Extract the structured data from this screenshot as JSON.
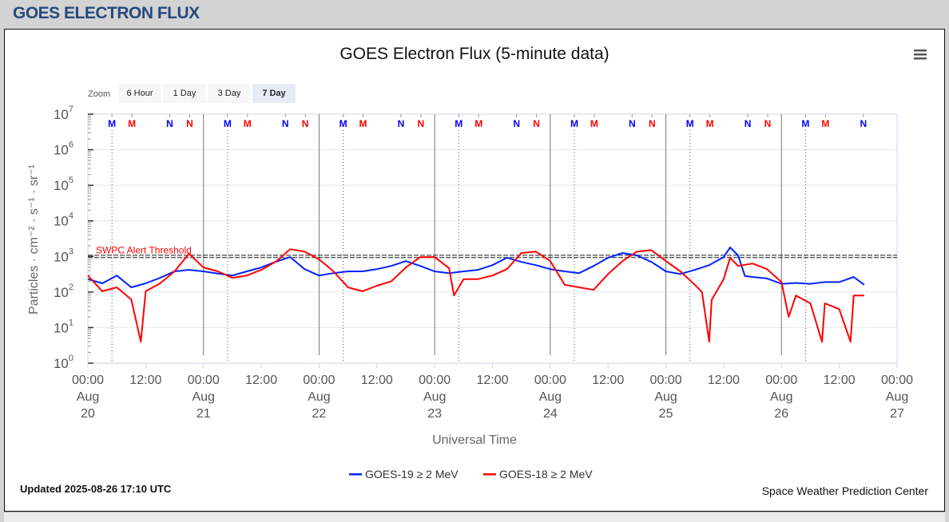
{
  "header": {
    "title": "GOES ELECTRON FLUX"
  },
  "menu_icon": "hamburger-menu-icon",
  "zoom": {
    "label": "Zoom",
    "buttons": [
      "6 Hour",
      "1 Day",
      "3 Day",
      "7 Day"
    ],
    "selected": "7 Day"
  },
  "footer": {
    "updated": "Updated 2025-08-26 17:10 UTC",
    "credit": "Space Weather Prediction Center"
  },
  "chart_data": {
    "type": "line",
    "title": "GOES Electron Flux (5-minute data)",
    "xlabel": "Universal Time",
    "ylabel": "Particles · cm⁻² · s⁻¹ · sr⁻¹",
    "yscale": "log",
    "ylim": [
      1,
      10000000
    ],
    "xlim": [
      "2025-08-20T00:00",
      "2025-08-27T00:00"
    ],
    "y_tick_exponents": [
      0,
      1,
      2,
      3,
      4,
      5,
      6,
      7
    ],
    "x_ticks": [
      {
        "t": "2025-08-20T00:00",
        "lines": [
          "00:00",
          "Aug",
          "20"
        ]
      },
      {
        "t": "2025-08-20T12:00",
        "lines": [
          "12:00"
        ]
      },
      {
        "t": "2025-08-21T00:00",
        "lines": [
          "00:00",
          "Aug",
          "21"
        ]
      },
      {
        "t": "2025-08-21T12:00",
        "lines": [
          "12:00"
        ]
      },
      {
        "t": "2025-08-22T00:00",
        "lines": [
          "00:00",
          "Aug",
          "22"
        ]
      },
      {
        "t": "2025-08-22T12:00",
        "lines": [
          "12:00"
        ]
      },
      {
        "t": "2025-08-23T00:00",
        "lines": [
          "00:00",
          "Aug",
          "23"
        ]
      },
      {
        "t": "2025-08-23T12:00",
        "lines": [
          "12:00"
        ]
      },
      {
        "t": "2025-08-24T00:00",
        "lines": [
          "00:00",
          "Aug",
          "24"
        ]
      },
      {
        "t": "2025-08-24T12:00",
        "lines": [
          "12:00"
        ]
      },
      {
        "t": "2025-08-25T00:00",
        "lines": [
          "00:00",
          "Aug",
          "25"
        ]
      },
      {
        "t": "2025-08-25T12:00",
        "lines": [
          "12:00"
        ]
      },
      {
        "t": "2025-08-26T00:00",
        "lines": [
          "00:00",
          "Aug",
          "26"
        ]
      },
      {
        "t": "2025-08-26T12:00",
        "lines": [
          "12:00"
        ]
      },
      {
        "t": "2025-08-27T00:00",
        "lines": [
          "00:00",
          "Aug",
          "27"
        ]
      }
    ],
    "grid": true,
    "legend_position": "bottom",
    "threshold": {
      "label": "SWPC Alert Threshold",
      "value": 1000,
      "color": "#ff0000"
    },
    "markers": [
      {
        "letter": "M",
        "color": "#0000ff",
        "t": "2025-08-20T05:00"
      },
      {
        "letter": "M",
        "color": "#ff0000",
        "t": "2025-08-20T09:08"
      },
      {
        "letter": "N",
        "color": "#0000ff",
        "t": "2025-08-20T17:00"
      },
      {
        "letter": "N",
        "color": "#ff0000",
        "t": "2025-08-20T21:08"
      },
      {
        "letter": "M",
        "color": "#0000ff",
        "t": "2025-08-21T05:00"
      },
      {
        "letter": "M",
        "color": "#ff0000",
        "t": "2025-08-21T09:08"
      },
      {
        "letter": "N",
        "color": "#0000ff",
        "t": "2025-08-21T17:00"
      },
      {
        "letter": "N",
        "color": "#ff0000",
        "t": "2025-08-21T21:08"
      },
      {
        "letter": "M",
        "color": "#0000ff",
        "t": "2025-08-22T05:00"
      },
      {
        "letter": "M",
        "color": "#ff0000",
        "t": "2025-08-22T09:08"
      },
      {
        "letter": "N",
        "color": "#0000ff",
        "t": "2025-08-22T17:00"
      },
      {
        "letter": "N",
        "color": "#ff0000",
        "t": "2025-08-22T21:08"
      },
      {
        "letter": "M",
        "color": "#0000ff",
        "t": "2025-08-23T05:00"
      },
      {
        "letter": "M",
        "color": "#ff0000",
        "t": "2025-08-23T09:08"
      },
      {
        "letter": "N",
        "color": "#0000ff",
        "t": "2025-08-23T17:00"
      },
      {
        "letter": "N",
        "color": "#ff0000",
        "t": "2025-08-23T21:08"
      },
      {
        "letter": "M",
        "color": "#0000ff",
        "t": "2025-08-24T05:00"
      },
      {
        "letter": "M",
        "color": "#ff0000",
        "t": "2025-08-24T09:08"
      },
      {
        "letter": "N",
        "color": "#0000ff",
        "t": "2025-08-24T17:00"
      },
      {
        "letter": "N",
        "color": "#ff0000",
        "t": "2025-08-24T21:08"
      },
      {
        "letter": "M",
        "color": "#0000ff",
        "t": "2025-08-25T05:00"
      },
      {
        "letter": "M",
        "color": "#ff0000",
        "t": "2025-08-25T09:08"
      },
      {
        "letter": "N",
        "color": "#0000ff",
        "t": "2025-08-25T17:00"
      },
      {
        "letter": "N",
        "color": "#ff0000",
        "t": "2025-08-25T21:08"
      },
      {
        "letter": "M",
        "color": "#0000ff",
        "t": "2025-08-26T05:00"
      },
      {
        "letter": "M",
        "color": "#ff0000",
        "t": "2025-08-26T09:08"
      },
      {
        "letter": "N",
        "color": "#0000ff",
        "t": "2025-08-26T17:00"
      }
    ],
    "series": [
      {
        "name": "GOES-19 ≥ 2 MeV",
        "color": "#0022ff",
        "points": [
          [
            "2025-08-20T00:00",
            230
          ],
          [
            "2025-08-20T03:00",
            175
          ],
          [
            "2025-08-20T06:00",
            290
          ],
          [
            "2025-08-20T09:00",
            135
          ],
          [
            "2025-08-20T12:00",
            175
          ],
          [
            "2025-08-20T15:00",
            250
          ],
          [
            "2025-08-20T18:00",
            380
          ],
          [
            "2025-08-20T21:00",
            420
          ],
          [
            "2025-08-21T00:00",
            380
          ],
          [
            "2025-08-21T03:00",
            330
          ],
          [
            "2025-08-21T06:00",
            290
          ],
          [
            "2025-08-21T09:00",
            380
          ],
          [
            "2025-08-21T12:00",
            490
          ],
          [
            "2025-08-21T15:00",
            710
          ],
          [
            "2025-08-21T18:00",
            960
          ],
          [
            "2025-08-21T21:00",
            440
          ],
          [
            "2025-08-22T00:00",
            290
          ],
          [
            "2025-08-22T03:00",
            340
          ],
          [
            "2025-08-22T06:00",
            380
          ],
          [
            "2025-08-22T09:00",
            380
          ],
          [
            "2025-08-22T12:00",
            440
          ],
          [
            "2025-08-22T15:00",
            540
          ],
          [
            "2025-08-22T18:00",
            740
          ],
          [
            "2025-08-22T21:00",
            540
          ],
          [
            "2025-08-23T00:00",
            380
          ],
          [
            "2025-08-23T03:00",
            340
          ],
          [
            "2025-08-23T06:00",
            380
          ],
          [
            "2025-08-23T09:00",
            420
          ],
          [
            "2025-08-23T12:00",
            570
          ],
          [
            "2025-08-23T15:00",
            920
          ],
          [
            "2025-08-23T18:00",
            700
          ],
          [
            "2025-08-23T21:00",
            570
          ],
          [
            "2025-08-24T00:00",
            440
          ],
          [
            "2025-08-24T03:00",
            380
          ],
          [
            "2025-08-24T06:00",
            340
          ],
          [
            "2025-08-24T09:00",
            540
          ],
          [
            "2025-08-24T12:00",
            920
          ],
          [
            "2025-08-24T15:00",
            1250
          ],
          [
            "2025-08-24T18:00",
            1070
          ],
          [
            "2025-08-24T21:00",
            700
          ],
          [
            "2025-08-25T00:00",
            380
          ],
          [
            "2025-08-25T03:00",
            320
          ],
          [
            "2025-08-25T06:00",
            420
          ],
          [
            "2025-08-25T09:00",
            570
          ],
          [
            "2025-08-25T12:00",
            960
          ],
          [
            "2025-08-25T13:20",
            1800
          ],
          [
            "2025-08-25T15:00",
            1070
          ],
          [
            "2025-08-25T16:25",
            280
          ],
          [
            "2025-08-25T18:00",
            265
          ],
          [
            "2025-08-25T21:00",
            240
          ],
          [
            "2025-08-26T00:00",
            170
          ],
          [
            "2025-08-26T03:00",
            180
          ],
          [
            "2025-08-26T06:00",
            170
          ],
          [
            "2025-08-26T09:00",
            190
          ],
          [
            "2025-08-26T12:00",
            190
          ],
          [
            "2025-08-26T15:00",
            265
          ],
          [
            "2025-08-26T17:10",
            160
          ]
        ]
      },
      {
        "name": "GOES-18 ≥ 2 MeV",
        "color": "#ff0000",
        "points": [
          [
            "2025-08-20T00:00",
            290
          ],
          [
            "2025-08-20T03:00",
            105
          ],
          [
            "2025-08-20T06:00",
            135
          ],
          [
            "2025-08-20T09:00",
            62
          ],
          [
            "2025-08-20T11:00",
            4
          ],
          [
            "2025-08-20T12:00",
            105
          ],
          [
            "2025-08-20T15:00",
            175
          ],
          [
            "2025-08-20T18:00",
            380
          ],
          [
            "2025-08-20T21:00",
            1200
          ],
          [
            "2025-08-21T00:00",
            490
          ],
          [
            "2025-08-21T03:00",
            380
          ],
          [
            "2025-08-21T06:00",
            250
          ],
          [
            "2025-08-21T09:00",
            290
          ],
          [
            "2025-08-21T12:00",
            420
          ],
          [
            "2025-08-21T15:00",
            710
          ],
          [
            "2025-08-21T18:00",
            1600
          ],
          [
            "2025-08-21T21:00",
            1370
          ],
          [
            "2025-08-22T00:00",
            830
          ],
          [
            "2025-08-22T03:00",
            380
          ],
          [
            "2025-08-22T06:00",
            135
          ],
          [
            "2025-08-22T09:00",
            105
          ],
          [
            "2025-08-22T12:00",
            150
          ],
          [
            "2025-08-22T15:00",
            200
          ],
          [
            "2025-08-22T18:00",
            490
          ],
          [
            "2025-08-22T21:00",
            960
          ],
          [
            "2025-08-23T00:00",
            960
          ],
          [
            "2025-08-23T03:00",
            470
          ],
          [
            "2025-08-23T04:00",
            80
          ],
          [
            "2025-08-23T06:00",
            230
          ],
          [
            "2025-08-23T09:00",
            230
          ],
          [
            "2025-08-23T12:00",
            290
          ],
          [
            "2025-08-23T15:00",
            440
          ],
          [
            "2025-08-23T18:00",
            1250
          ],
          [
            "2025-08-23T21:00",
            1370
          ],
          [
            "2025-08-24T00:00",
            740
          ],
          [
            "2025-08-24T03:00",
            160
          ],
          [
            "2025-08-24T06:00",
            135
          ],
          [
            "2025-08-24T09:00",
            115
          ],
          [
            "2025-08-24T12:00",
            320
          ],
          [
            "2025-08-24T15:00",
            740
          ],
          [
            "2025-08-24T18:00",
            1370
          ],
          [
            "2025-08-24T21:00",
            1500
          ],
          [
            "2025-08-25T00:00",
            740
          ],
          [
            "2025-08-25T03:00",
            380
          ],
          [
            "2025-08-25T06:00",
            160
          ],
          [
            "2025-08-25T07:30",
            100
          ],
          [
            "2025-08-25T09:00",
            4
          ],
          [
            "2025-08-25T09:30",
            60
          ],
          [
            "2025-08-25T12:00",
            230
          ],
          [
            "2025-08-25T13:20",
            920
          ],
          [
            "2025-08-25T15:00",
            540
          ],
          [
            "2025-08-25T18:00",
            630
          ],
          [
            "2025-08-25T21:00",
            440
          ],
          [
            "2025-08-26T00:00",
            190
          ],
          [
            "2025-08-26T01:30",
            20
          ],
          [
            "2025-08-26T03:00",
            80
          ],
          [
            "2025-08-26T06:00",
            48
          ],
          [
            "2025-08-26T08:25",
            4
          ],
          [
            "2025-08-26T09:00",
            48
          ],
          [
            "2025-08-26T12:00",
            33
          ],
          [
            "2025-08-26T14:20",
            4
          ],
          [
            "2025-08-26T15:00",
            80
          ],
          [
            "2025-08-26T17:10",
            80
          ]
        ]
      }
    ]
  }
}
